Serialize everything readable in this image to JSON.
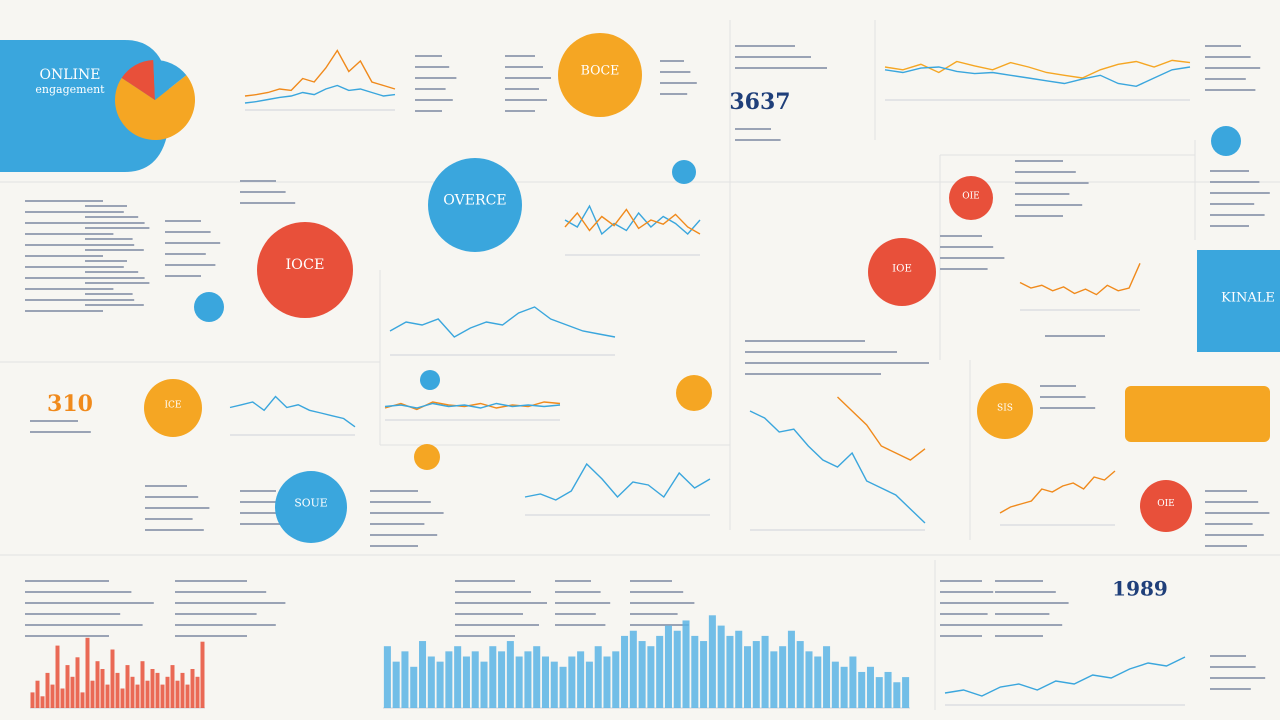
{
  "header": {
    "title": "ONLINE",
    "subtitle": "engagement"
  },
  "kpis": [
    {
      "label": "3637",
      "color": "#1f3f7a"
    },
    {
      "label": "1989",
      "color": "#1f3f7a"
    },
    {
      "label": "310",
      "color": "#f08a1c"
    }
  ],
  "pie": {
    "values": [
      70,
      15,
      15
    ],
    "colors": [
      "#f5a623",
      "#e8503a",
      "#3aa6dd"
    ]
  },
  "circles": [
    {
      "label": "BOCE",
      "color": "#f5a623"
    },
    {
      "label": "OVERCE",
      "color": "#3aa6dd"
    },
    {
      "label": "IOCE",
      "color": "#e8503a"
    },
    {
      "label": "SOUE",
      "color": "#3aa6dd"
    },
    {
      "label": "IOE",
      "color": "#e8503a"
    },
    {
      "label": "SIS",
      "color": "#f5a623"
    },
    {
      "label": "OIE",
      "color": "#e8503a"
    },
    {
      "label": "ICE",
      "color": "#f5a623"
    },
    {
      "label": "OIE",
      "color": "#e8503a"
    }
  ],
  "panels": [
    {
      "label": "KINALE",
      "color": "#3aa6dd"
    }
  ],
  "charts": [
    {
      "type": "line",
      "ylim": [
        0,
        100
      ],
      "series": [
        {
          "color": "#f08a1c",
          "values": [
            20,
            22,
            25,
            30,
            28,
            45,
            40,
            60,
            85,
            55,
            70,
            40,
            35,
            30
          ]
        },
        {
          "color": "#3aa6dd",
          "values": [
            10,
            12,
            15,
            18,
            20,
            25,
            22,
            30,
            35,
            28,
            30,
            25,
            20,
            22
          ]
        }
      ]
    },
    {
      "type": "line",
      "ylim": [
        0,
        100
      ],
      "series": [
        {
          "color": "#f5a623",
          "values": [
            60,
            55,
            65,
            50,
            70,
            62,
            55,
            68,
            60,
            50,
            45,
            40,
            55,
            65,
            70,
            60,
            72,
            68
          ]
        },
        {
          "color": "#3aa6dd",
          "values": [
            55,
            50,
            58,
            60,
            52,
            48,
            50,
            45,
            40,
            35,
            30,
            38,
            45,
            30,
            25,
            40,
            55,
            60
          ]
        }
      ]
    },
    {
      "type": "line",
      "ylim": [
        0,
        100
      ],
      "series": [
        {
          "color": "#3aa6dd",
          "values": [
            50,
            40,
            70,
            30,
            45,
            35,
            60,
            40,
            55,
            45,
            30,
            50
          ]
        },
        {
          "color": "#f08a1c",
          "values": [
            40,
            60,
            35,
            55,
            42,
            65,
            38,
            50,
            44,
            58,
            40,
            30
          ]
        }
      ]
    },
    {
      "type": "line",
      "ylim": [
        0,
        100
      ],
      "series": [
        {
          "color": "#f08a1c",
          "values": [
            50,
            40,
            45,
            35,
            42,
            30,
            38,
            28,
            45,
            35,
            40,
            85
          ]
        }
      ]
    },
    {
      "type": "line",
      "ylim": [
        0,
        100
      ],
      "series": [
        {
          "color": "#3aa6dd",
          "values": [
            40,
            55,
            50,
            60,
            30,
            45,
            55,
            50,
            70,
            80,
            60,
            50,
            40,
            35,
            30
          ]
        }
      ]
    },
    {
      "type": "line",
      "ylim": [
        0,
        100
      ],
      "series": [
        {
          "color": "#3aa6dd",
          "values": [
            50,
            55,
            60,
            45,
            70,
            50,
            55,
            45,
            40,
            35,
            30,
            15
          ]
        }
      ]
    },
    {
      "type": "line",
      "ylim": [
        0,
        100
      ],
      "series": [
        {
          "color": "#f08a1c",
          "values": [
            40,
            55,
            35,
            60,
            50,
            45,
            55,
            40,
            50,
            45,
            60,
            55
          ]
        },
        {
          "color": "#3aa6dd",
          "values": [
            45,
            50,
            40,
            55,
            45,
            50,
            40,
            55,
            45,
            50,
            45,
            50
          ]
        }
      ]
    },
    {
      "type": "line",
      "ylim": [
        0,
        100
      ],
      "series": [
        {
          "color": "#3aa6dd",
          "values": [
            85,
            80,
            70,
            72,
            60,
            50,
            45,
            55,
            35,
            30,
            25,
            15,
            5
          ]
        },
        {
          "color": "#f08a1c",
          "values": [
            null,
            null,
            null,
            null,
            null,
            null,
            95,
            85,
            75,
            60,
            55,
            50,
            58
          ]
        }
      ]
    },
    {
      "type": "line",
      "ylim": [
        0,
        100
      ],
      "series": [
        {
          "color": "#3aa6dd",
          "values": [
            30,
            35,
            25,
            40,
            85,
            60,
            30,
            55,
            50,
            30,
            70,
            45,
            60
          ]
        }
      ]
    },
    {
      "type": "line",
      "ylim": [
        0,
        100
      ],
      "series": [
        {
          "color": "#f08a1c",
          "values": [
            20,
            30,
            35,
            40,
            60,
            55,
            65,
            70,
            60,
            80,
            75,
            90
          ]
        }
      ]
    },
    {
      "type": "line",
      "ylim": [
        0,
        100
      ],
      "series": [
        {
          "color": "#3aa6dd",
          "values": [
            20,
            25,
            15,
            30,
            35,
            25,
            40,
            35,
            50,
            45,
            60,
            70,
            65,
            80
          ]
        }
      ]
    },
    {
      "type": "bar",
      "ylim": [
        0,
        100
      ],
      "color": "#e8503a",
      "values": [
        20,
        35,
        15,
        45,
        30,
        80,
        25,
        55,
        40,
        65,
        20,
        90,
        35,
        60,
        50,
        30,
        75,
        45,
        25,
        55,
        40,
        30,
        60,
        35,
        50,
        45,
        30,
        40,
        55,
        35,
        45,
        30,
        50,
        40,
        85
      ]
    },
    {
      "type": "bar",
      "ylim": [
        0,
        100
      ],
      "color": "#5bb4e5",
      "values": [
        60,
        45,
        55,
        40,
        65,
        50,
        45,
        55,
        60,
        50,
        55,
        45,
        60,
        55,
        65,
        50,
        55,
        60,
        50,
        45,
        40,
        50,
        55,
        45,
        60,
        50,
        55,
        70,
        75,
        65,
        60,
        70,
        80,
        75,
        85,
        70,
        65,
        90,
        80,
        70,
        75,
        60,
        65,
        70,
        55,
        60,
        75,
        65,
        55,
        50,
        60,
        45,
        40,
        50,
        35,
        40,
        30,
        35,
        25,
        30
      ]
    }
  ]
}
